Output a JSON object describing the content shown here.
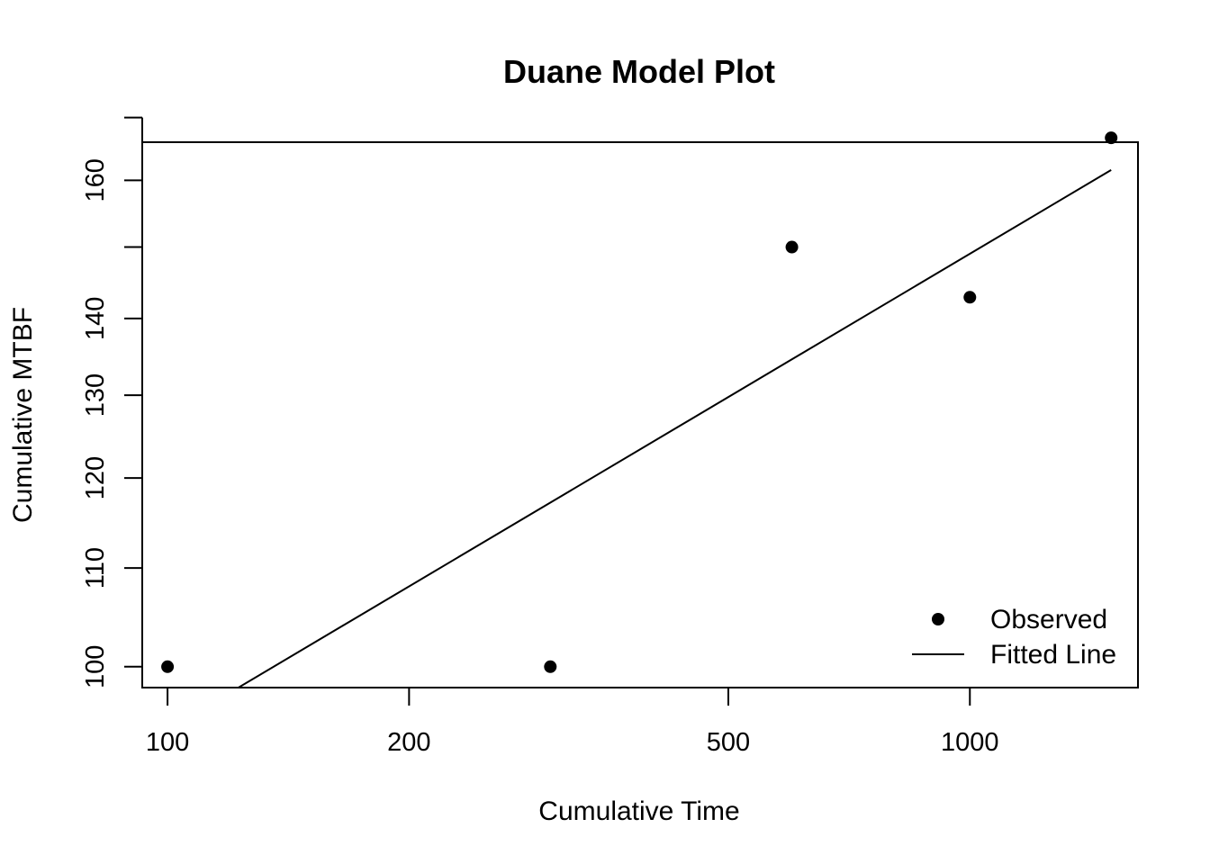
{
  "chart_data": {
    "type": "scatter",
    "title": "Duane Model Plot",
    "xlabel": "Cumulative Time",
    "ylabel": "Cumulative MTBF",
    "x_scale": "log",
    "y_scale": "log",
    "xlim": [
      93,
      1620
    ],
    "ylim": [
      98,
      166
    ],
    "x_ticks": [
      {
        "value": 100,
        "label": "100"
      },
      {
        "value": 200,
        "label": "200"
      },
      {
        "value": 500,
        "label": "500"
      },
      {
        "value": 1000,
        "label": "1000"
      }
    ],
    "y_ticks": [
      {
        "value": 100,
        "label": "100"
      },
      {
        "value": 110,
        "label": "110"
      },
      {
        "value": 120,
        "label": "120"
      },
      {
        "value": 130,
        "label": "130"
      },
      {
        "value": 140,
        "label": "140"
      },
      {
        "value": 150,
        "label": ""
      },
      {
        "value": 160,
        "label": "160"
      },
      {
        "value": 170,
        "label": ""
      }
    ],
    "series": [
      {
        "name": "Observed",
        "type": "scatter",
        "color": "#000000",
        "points": [
          {
            "x": 100,
            "y": 100
          },
          {
            "x": 300,
            "y": 100
          },
          {
            "x": 600,
            "y": 150
          },
          {
            "x": 1000,
            "y": 142.9
          },
          {
            "x": 1500,
            "y": 166.7
          }
        ]
      },
      {
        "name": "Fitted Line",
        "type": "line",
        "color": "#000000",
        "points": [
          {
            "x": 100,
            "y": 94.1
          },
          {
            "x": 1500,
            "y": 161.6
          }
        ]
      }
    ],
    "legend": {
      "position": "bottom-right",
      "entries": [
        {
          "label": "Observed",
          "symbol": "point"
        },
        {
          "label": "Fitted Line",
          "symbol": "line"
        }
      ]
    },
    "grid": false
  }
}
